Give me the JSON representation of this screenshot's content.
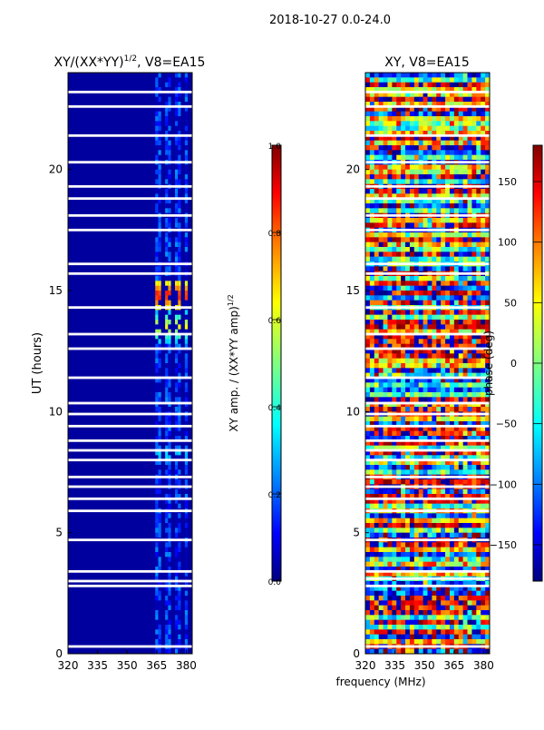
{
  "figure_title": "2018-10-27 0.0-24.0",
  "colors": {
    "jet_stops": [
      "#000080",
      "#0000ff",
      "#0080ff",
      "#00ffff",
      "#80ff80",
      "#ffff00",
      "#ff8000",
      "#ff0000",
      "#800000"
    ]
  },
  "chart_data": [
    {
      "type": "heatmap",
      "title_main": "XY/(XX*YY)",
      "title_exp": "1/2",
      "title_suffix": ", V8=EA15",
      "title": "XY/(XX*YY)^(1/2), V8=EA15",
      "xlabel": "",
      "ylabel": "UT (hours)",
      "xlim": [
        320,
        383
      ],
      "ylim": [
        0,
        24
      ],
      "xticks": [
        320,
        335,
        350,
        365,
        380
      ],
      "yticks": [
        0,
        5,
        10,
        15,
        20
      ],
      "value_range": [
        0.0,
        1.0
      ],
      "background_value": 0.03,
      "signal_channels_mhz": [
        365,
        366.5,
        370,
        371.5,
        375,
        376.5,
        380
      ],
      "hot_spots": [
        {
          "ut": 14.8,
          "value": 0.85
        },
        {
          "ut": 13.5,
          "value": 0.6
        },
        {
          "ut": 8.2,
          "value": 0.35
        }
      ],
      "flagged_ut_rows": [
        0.3,
        2.8,
        3.0,
        3.4,
        4.7,
        5.9,
        6.4,
        6.9,
        7.3,
        8.0,
        8.4,
        8.8,
        9.4,
        9.9,
        10.35,
        11.4,
        12.6,
        13.2,
        14.3,
        15.7,
        16.1,
        17.5,
        18.1,
        18.8,
        19.3,
        20.3,
        21.4,
        22.6,
        23.2
      ]
    },
    {
      "type": "heatmap",
      "title": "XY, V8=EA15",
      "xlabel": "frequency (MHz)",
      "ylabel": "",
      "xlim": [
        320,
        383
      ],
      "ylim": [
        0,
        24
      ],
      "xticks": [
        320,
        335,
        350,
        365,
        380
      ],
      "yticks": [
        0,
        5,
        10,
        15,
        20
      ],
      "value_range": [
        -180,
        180
      ],
      "flagged_ut_rows": [
        0.3,
        2.8,
        3.1,
        3.4,
        4.7,
        5.9,
        6.4,
        6.9,
        7.3,
        8.0,
        8.4,
        8.8,
        9.4,
        9.9,
        10.35,
        11.4,
        12.6,
        13.2,
        14.3,
        15.7,
        16.1,
        17.5,
        18.1,
        18.8,
        19.3,
        20.3,
        21.4,
        22.6,
        23.2
      ]
    }
  ],
  "colorbars": [
    {
      "label_main": "XY amp. / (XX*YY amp)",
      "label_exp": "1/2",
      "label": "XY amp. / (XX*YY amp)^(1/2)",
      "range": [
        0.0,
        1.0
      ],
      "tick_values": [
        0.0,
        0.2,
        0.4,
        0.6,
        0.8,
        1.0
      ],
      "tick_labels": [
        "0.0",
        "0.2",
        "0.4",
        "0.6",
        "0.8",
        "1.0"
      ]
    },
    {
      "label": "phase (deg)",
      "range": [
        -180,
        180
      ],
      "tick_values": [
        -150,
        -100,
        -50,
        0,
        50,
        100,
        150
      ],
      "tick_labels": [
        "−150",
        "−100",
        "−50",
        "0",
        "50",
        "100",
        "150"
      ]
    }
  ]
}
